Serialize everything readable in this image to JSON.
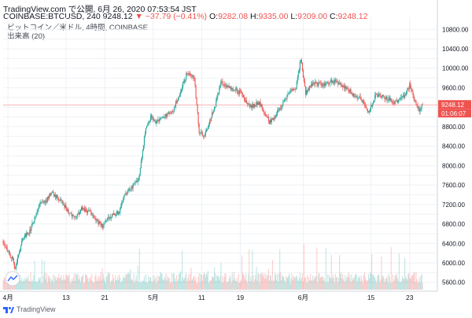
{
  "header": {
    "line1": "TradingView.com で公開, 6月 26, 2020 07:53:54 JST",
    "symbol": "COINBASE:BTCUSD, 240",
    "last": "9248.12",
    "change": "▼ −37.79 (−0.41%)",
    "o_label": "O:",
    "o_val": "9282.08",
    "h_label": "H:",
    "h_val": "9335.00",
    "l_label": "L:",
    "l_val": "9209.00",
    "c_label": "C:",
    "c_val": "9248.12"
  },
  "legend": {
    "line1": "ビットコイン／米ドル, 4時間, COINBASE",
    "line2": "出来高 (20)"
  },
  "footer": {
    "brand": "TradingView"
  },
  "colors": {
    "up": "#26a69a",
    "down": "#ef5350",
    "grid": "#eef1f5",
    "priceLine": "#ef5350"
  },
  "chart_data": {
    "type": "candlestick",
    "timeframe": "4時間",
    "y_ticks": [
      5600,
      5800,
      6000,
      6200,
      6400,
      6600,
      6800,
      7000,
      7200,
      7400,
      7600,
      7800,
      8000,
      8200,
      8400,
      8600,
      8800,
      9000,
      9200,
      9400,
      9600,
      9800,
      10000,
      10200,
      10400,
      10600,
      10800
    ],
    "y_tick_labels": [
      "5600.00",
      "",
      "6000.00",
      "",
      "6400.00",
      "",
      "6800.00",
      "",
      "7200.00",
      "",
      "7600.00",
      "",
      "8000.00",
      "",
      "8400.00",
      "",
      "8800.00",
      "",
      "",
      "",
      "9600.00",
      "",
      "10000.00",
      "",
      "10400.00",
      "",
      "10800.00"
    ],
    "ylim": [
      5450,
      10950
    ],
    "x_labels": [
      {
        "label": "4月",
        "day": 1
      },
      {
        "label": "13",
        "day": 13
      },
      {
        "label": "21",
        "day": 21
      },
      {
        "label": "5月",
        "day": 31
      },
      {
        "label": "11",
        "day": 41
      },
      {
        "label": "19",
        "day": 49
      },
      {
        "label": "6月",
        "day": 62
      },
      {
        "label": "15",
        "day": 76
      },
      {
        "label": "23",
        "day": 84
      }
    ],
    "x_start_day": 0,
    "x_end_day": 86.8,
    "price_anchors": [
      [
        0,
        6450
      ],
      [
        2,
        6050
      ],
      [
        2.5,
        5880
      ],
      [
        4,
        6500
      ],
      [
        5.5,
        6650
      ],
      [
        6.5,
        6900
      ],
      [
        7.5,
        7200
      ],
      [
        9,
        7300
      ],
      [
        10,
        7450
      ],
      [
        12,
        7250
      ],
      [
        14,
        7000
      ],
      [
        15,
        6900
      ],
      [
        16,
        7100
      ],
      [
        18,
        7050
      ],
      [
        19.5,
        6850
      ],
      [
        20.5,
        6750
      ],
      [
        22,
        6950
      ],
      [
        24,
        7050
      ],
      [
        25,
        7400
      ],
      [
        27,
        7600
      ],
      [
        28,
        7750
      ],
      [
        29.5,
        8800
      ],
      [
        30.5,
        9000
      ],
      [
        31.5,
        8900
      ],
      [
        33,
        9000
      ],
      [
        35,
        9100
      ],
      [
        36.5,
        9500
      ],
      [
        38,
        9900
      ],
      [
        39.5,
        9800
      ],
      [
        40.5,
        8700
      ],
      [
        41.5,
        8600
      ],
      [
        43,
        9000
      ],
      [
        44,
        9300
      ],
      [
        45,
        9700
      ],
      [
        47,
        9600
      ],
      [
        49,
        9500
      ],
      [
        51,
        9200
      ],
      [
        53,
        9300
      ],
      [
        55,
        8900
      ],
      [
        56,
        9000
      ],
      [
        57.5,
        9200
      ],
      [
        59,
        9500
      ],
      [
        60.5,
        9600
      ],
      [
        61.5,
        10200
      ],
      [
        62.5,
        9500
      ],
      [
        64,
        9700
      ],
      [
        66,
        9650
      ],
      [
        68,
        9750
      ],
      [
        70,
        9650
      ],
      [
        71.5,
        9550
      ],
      [
        72.5,
        9450
      ],
      [
        74,
        9350
      ],
      [
        75.5,
        9100
      ],
      [
        77,
        9450
      ],
      [
        79,
        9400
      ],
      [
        81,
        9300
      ],
      [
        83,
        9450
      ],
      [
        84,
        9650
      ],
      [
        85,
        9350
      ],
      [
        86,
        9150
      ],
      [
        86.8,
        9248.12
      ]
    ],
    "current_price": "9248.12",
    "countdown": "01:06:07"
  }
}
